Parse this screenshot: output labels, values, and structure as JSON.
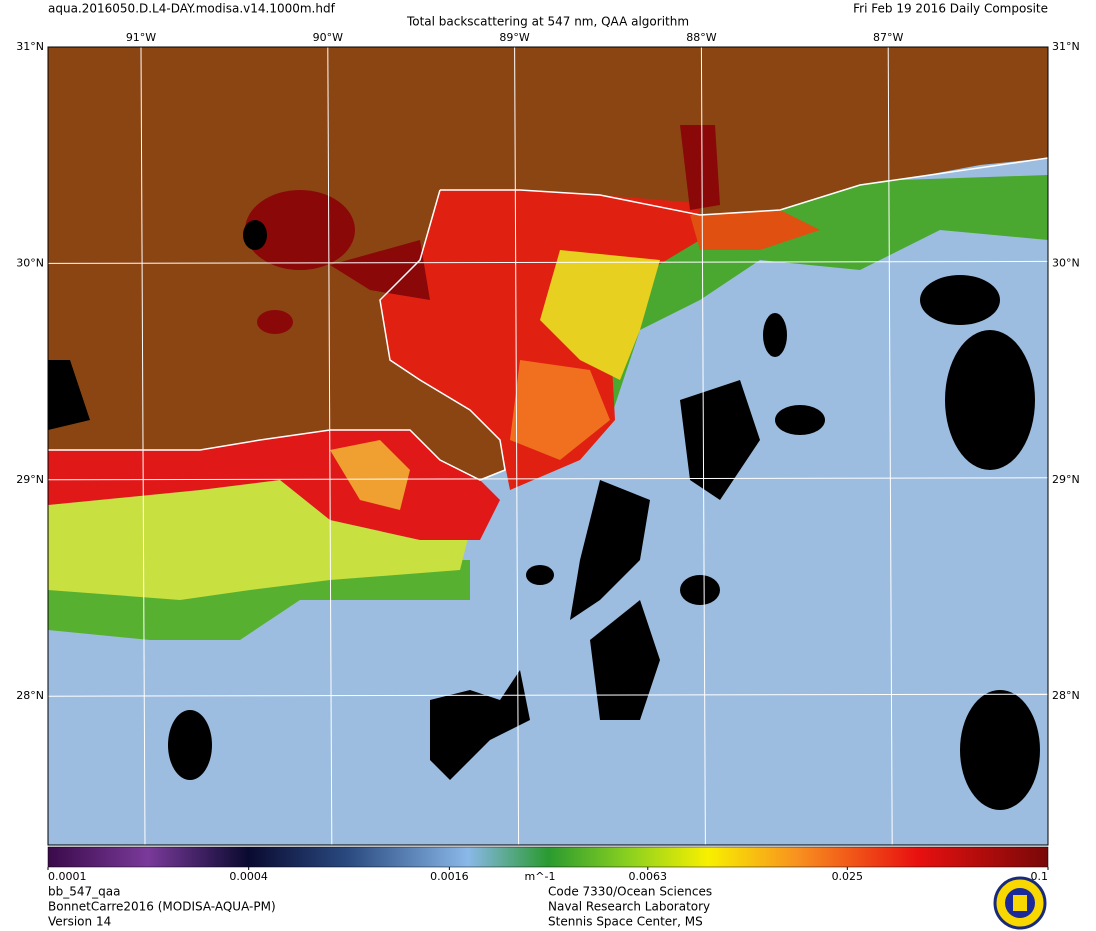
{
  "header": {
    "file": "aqua.2016050.D.L4-DAY.modisa.v14.1000m.hdf",
    "title": "Total backscattering at 547 nm, QAA algorithm",
    "date": "Fri Feb 19 2016 Daily Composite"
  },
  "map": {
    "longitude_labels": [
      "91°W",
      "90°W",
      "89°W",
      "88°W",
      "87°W"
    ],
    "latitude_labels": [
      "31°N",
      "30°N",
      "29°N",
      "28°N"
    ]
  },
  "colorbar": {
    "scale": "log",
    "range": [
      0.0001,
      0.1
    ],
    "ticks": [
      0.0001,
      0.0004,
      0.0016,
      0.0063,
      0.025,
      0.1
    ],
    "units": "m^-1"
  },
  "footer": {
    "left": [
      "bb_547_qaa",
      "BonnetCarre2016 (MODISA-AQUA-PM)",
      "Version 14"
    ],
    "right": [
      "Code 7330/Ocean Sciences",
      "Naval Research Laboratory",
      "Stennis Space Center, MS"
    ]
  }
}
